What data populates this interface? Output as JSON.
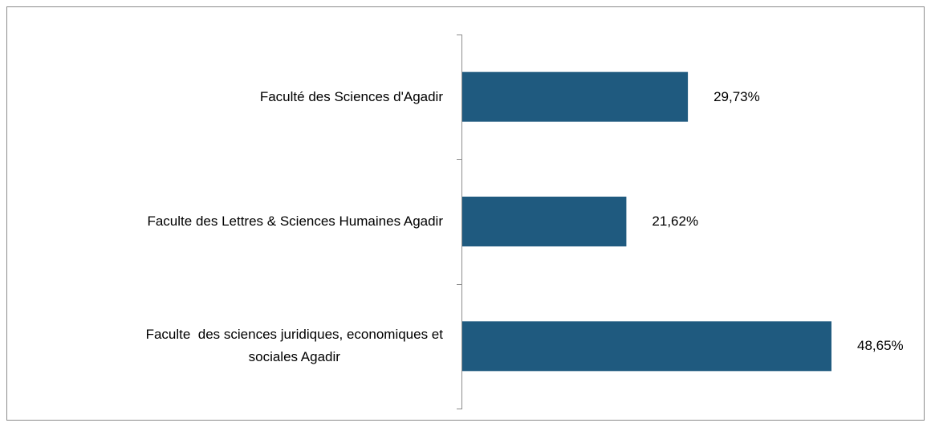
{
  "chart_data": {
    "type": "bar",
    "orientation": "horizontal",
    "categories": [
      "Faculté des Sciences d'Agadir",
      "Faculte des Lettres & Sciences Humaines Agadir",
      "Faculte  des sciences juridiques, economiques et\nsociales Agadir"
    ],
    "values": [
      29.73,
      21.62,
      48.65
    ],
    "value_labels": [
      "29,73%",
      "21,62%",
      "48,65%"
    ],
    "color": "#1f5a7f"
  }
}
